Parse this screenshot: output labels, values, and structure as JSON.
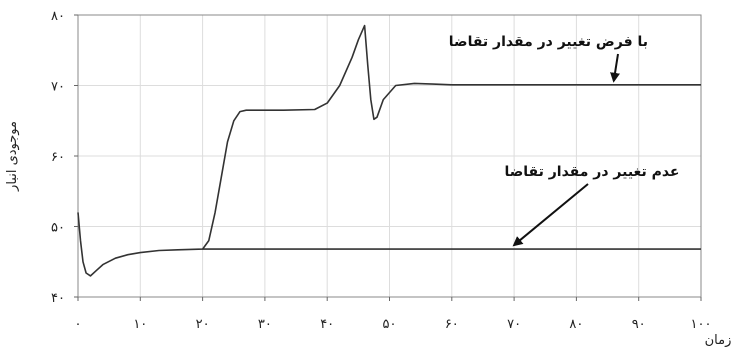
{
  "chart_data": {
    "type": "line",
    "xlabel": "زمان",
    "ylabel": "موجودی انبار",
    "xlim": [
      0,
      100
    ],
    "ylim": [
      40,
      80
    ],
    "x_ticks": [
      0,
      10,
      20,
      30,
      40,
      50,
      60,
      70,
      80,
      90,
      100
    ],
    "y_ticks": [
      40,
      50,
      60,
      70,
      80
    ],
    "x_tick_labels": [
      "۰",
      "۱۰",
      "۲۰",
      "۳۰",
      "۴۰",
      "۵۰",
      "۶۰",
      "۷۰",
      "۸۰",
      "۹۰",
      "۱۰۰"
    ],
    "y_tick_labels": [
      "۴۰",
      "۵۰",
      "۶۰",
      "۷۰",
      "۸۰"
    ],
    "grid": true,
    "series": [
      {
        "color": "#333333",
        "x": [
          0,
          0.4,
          0.8,
          1.3,
          2,
          3,
          4,
          6,
          8,
          10,
          13,
          16,
          20,
          21,
          22,
          23,
          24,
          25,
          26,
          27,
          30,
          33,
          38,
          40,
          42,
          44,
          45,
          46,
          46.5,
          47,
          47.5,
          48,
          49,
          51,
          54,
          57,
          60,
          100
        ],
        "y": [
          52,
          48,
          45,
          43.4,
          43,
          43.8,
          44.6,
          45.5,
          46,
          46.3,
          46.6,
          46.7,
          46.8,
          48,
          52,
          57,
          62,
          65,
          66.3,
          66.5,
          66.5,
          66.5,
          66.6,
          67.5,
          70,
          74,
          76.5,
          78.5,
          73,
          68,
          65.2,
          65.5,
          68,
          70,
          70.3,
          70.2,
          70.1,
          70.1
        ]
      },
      {
        "color": "#333333",
        "x": [
          20,
          100
        ],
        "y": [
          46.8,
          46.8
        ]
      }
    ],
    "annotations": [
      {
        "text": "با فرض تغییر در مقدار تقاضا",
        "arrow_to": [
          86,
          70.1
        ]
      },
      {
        "text": "عدم تغییر در مقدار تقاضا",
        "arrow_to": [
          70,
          46.8
        ]
      }
    ]
  }
}
